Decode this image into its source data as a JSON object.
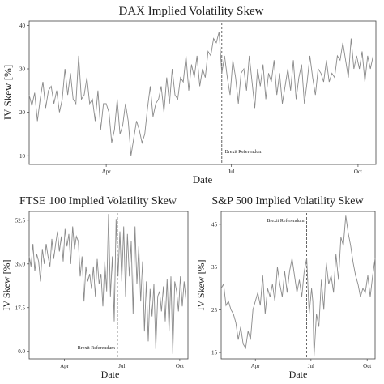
{
  "chart_data": [
    {
      "type": "line",
      "title": "DAX Implied Volatility Skew",
      "xlabel": "Date",
      "ylabel": "IV Skew [%]",
      "ylim": [
        8,
        41
      ],
      "yticks": [
        10,
        20,
        30,
        40
      ],
      "ytick_labels": [
        "10",
        "20",
        "30",
        "40"
      ],
      "xlim": [
        0,
        252
      ],
      "xticks": [
        {
          "label": "Apr",
          "x": 56
        },
        {
          "label": "Jul",
          "x": 147
        },
        {
          "label": "Oct",
          "x": 239
        }
      ],
      "annotation": {
        "label": "Brexit Referendum",
        "x": 140
      },
      "series": [
        {
          "x": [
            0,
            2,
            4,
            6,
            8,
            10,
            12,
            14,
            16,
            18,
            20,
            22,
            24,
            26,
            28,
            30,
            32,
            34,
            36,
            38,
            40,
            42,
            44,
            46,
            48,
            50,
            52,
            54,
            56,
            58,
            60,
            62,
            64,
            66,
            68,
            70,
            72,
            74,
            76,
            78,
            80,
            82,
            84,
            86,
            88,
            90,
            92,
            94,
            96,
            98,
            100,
            102,
            104,
            106,
            108,
            110,
            112,
            114,
            116,
            118,
            120,
            122,
            124,
            126,
            128,
            130,
            132,
            134,
            136,
            138,
            140,
            142,
            144,
            146,
            148,
            150,
            152,
            154,
            156,
            158,
            160,
            162,
            164,
            166,
            168,
            170,
            172,
            174,
            176,
            178,
            180,
            182,
            184,
            186,
            188,
            190,
            192,
            194,
            196,
            198,
            200,
            202,
            204,
            206,
            208,
            210,
            212,
            214,
            216,
            218,
            220,
            222,
            224,
            226,
            228,
            230,
            232,
            234,
            236,
            238,
            240,
            242,
            244,
            246,
            248,
            250
          ],
          "values": [
            24,
            21.5,
            24.5,
            18,
            23,
            27,
            21,
            25,
            26,
            22,
            25,
            20,
            23,
            30,
            24,
            29,
            23,
            22,
            33,
            23,
            24,
            28,
            22,
            23,
            18,
            25,
            16,
            22,
            22,
            20,
            13,
            16,
            23,
            15,
            17,
            22,
            18,
            10,
            14,
            18,
            16,
            13,
            15,
            21,
            26,
            19,
            22,
            23,
            26,
            20,
            28,
            22,
            30,
            24,
            23,
            28,
            27,
            33,
            25,
            31,
            28,
            33,
            26,
            30,
            28,
            34,
            33,
            37,
            36,
            38.5,
            29,
            33,
            28,
            24,
            32,
            28,
            22,
            29,
            30,
            25,
            33,
            27,
            21,
            30,
            26,
            31,
            23,
            29,
            27,
            32,
            24,
            29,
            22,
            26,
            30,
            25,
            32,
            23,
            28,
            31,
            22,
            27,
            33,
            28,
            24,
            30,
            29,
            27,
            32,
            27,
            29,
            28,
            33,
            32,
            36,
            32,
            28,
            37,
            30,
            33,
            30,
            34,
            27,
            33,
            30,
            33
          ]
        }
      ]
    },
    {
      "type": "line",
      "title": "FTSE 100 Implied Volatility Skew",
      "xlabel": "Date",
      "ylabel": "IV Skew [%]",
      "ylim": [
        -3,
        56
      ],
      "yticks": [
        0,
        17.5,
        35,
        52.5
      ],
      "ytick_labels": [
        "0.0",
        "17.5",
        "35.0",
        "52.5"
      ],
      "xlim": [
        0,
        252
      ],
      "xticks": [
        {
          "label": "Apr",
          "x": 56
        },
        {
          "label": "Jul",
          "x": 147
        },
        {
          "label": "Oct",
          "x": 239
        }
      ],
      "annotation": {
        "label": "Brexit Referendum",
        "x": 140
      },
      "series": [
        {
          "x": [
            0,
            3,
            6,
            9,
            12,
            15,
            18,
            21,
            24,
            27,
            30,
            33,
            36,
            39,
            42,
            45,
            48,
            51,
            54,
            57,
            60,
            63,
            66,
            69,
            72,
            75,
            78,
            81,
            84,
            87,
            90,
            93,
            96,
            99,
            102,
            105,
            108,
            111,
            114,
            117,
            120,
            123,
            126,
            129,
            132,
            135,
            138,
            141,
            144,
            147,
            150,
            153,
            156,
            159,
            162,
            165,
            168,
            171,
            174,
            177,
            180,
            183,
            186,
            189,
            192,
            195,
            198,
            201,
            204,
            207,
            210,
            213,
            216,
            219,
            222,
            225,
            228,
            231,
            234,
            237,
            240,
            243,
            246,
            249
          ],
          "values": [
            38,
            34,
            43,
            32,
            39,
            36,
            28,
            41,
            35,
            43,
            38,
            34,
            45,
            37,
            43,
            48,
            40,
            46,
            36,
            49,
            42,
            47,
            35,
            50,
            41,
            46,
            44,
            30,
            38,
            20,
            34,
            28,
            31,
            25,
            34,
            22,
            37,
            27,
            31,
            18,
            36,
            24,
            55,
            22,
            38,
            12,
            53,
            30,
            48,
            28,
            50,
            22,
            47,
            30,
            44,
            15,
            50,
            27,
            42,
            20,
            36,
            8,
            28,
            4,
            25,
            14,
            27,
            1,
            22,
            24,
            16,
            26,
            12,
            29,
            8,
            30,
            -1,
            28,
            24,
            16,
            30,
            18,
            28,
            20
          ]
        }
      ]
    },
    {
      "type": "line",
      "title": "S&P 500 Implied Volatility Skew",
      "xlabel": "Date",
      "ylabel": "IV Skew [%]",
      "ylim": [
        13.5,
        48
      ],
      "yticks": [
        15,
        25,
        35,
        45
      ],
      "ytick_labels": [
        "15",
        "25",
        "35",
        "45"
      ],
      "xlim": [
        0,
        252
      ],
      "xticks": [
        {
          "label": "Apr",
          "x": 56
        },
        {
          "label": "Jul",
          "x": 147
        },
        {
          "label": "Oct",
          "x": 239
        }
      ],
      "annotation": {
        "label": "Brexit Referendum",
        "x": 140
      },
      "series": [
        {
          "x": [
            0,
            4,
            8,
            12,
            16,
            20,
            24,
            28,
            32,
            36,
            40,
            44,
            48,
            52,
            56,
            60,
            64,
            68,
            72,
            76,
            80,
            84,
            88,
            92,
            96,
            100,
            104,
            108,
            112,
            116,
            120,
            124,
            128,
            132,
            136,
            140,
            144,
            148,
            150,
            152,
            156,
            160,
            164,
            168,
            172,
            176,
            180,
            184,
            188,
            192,
            196,
            200,
            204,
            208,
            212,
            216,
            220,
            224,
            228,
            232,
            236,
            240,
            244,
            248,
            252
          ],
          "values": [
            30,
            31,
            26,
            27,
            25,
            24,
            22,
            18,
            21,
            17,
            16,
            20,
            18,
            25,
            27,
            29,
            26,
            33,
            24,
            30,
            28,
            31,
            27,
            35,
            31,
            28,
            34,
            29,
            34,
            37,
            33,
            29,
            32,
            28,
            34,
            37,
            24,
            30,
            27,
            14,
            24,
            21,
            32,
            25,
            36,
            31,
            33,
            29,
            38,
            32,
            42,
            40,
            47,
            43,
            40,
            36,
            33,
            31,
            28,
            30,
            29,
            33,
            28,
            33,
            37
          ]
        }
      ]
    }
  ]
}
